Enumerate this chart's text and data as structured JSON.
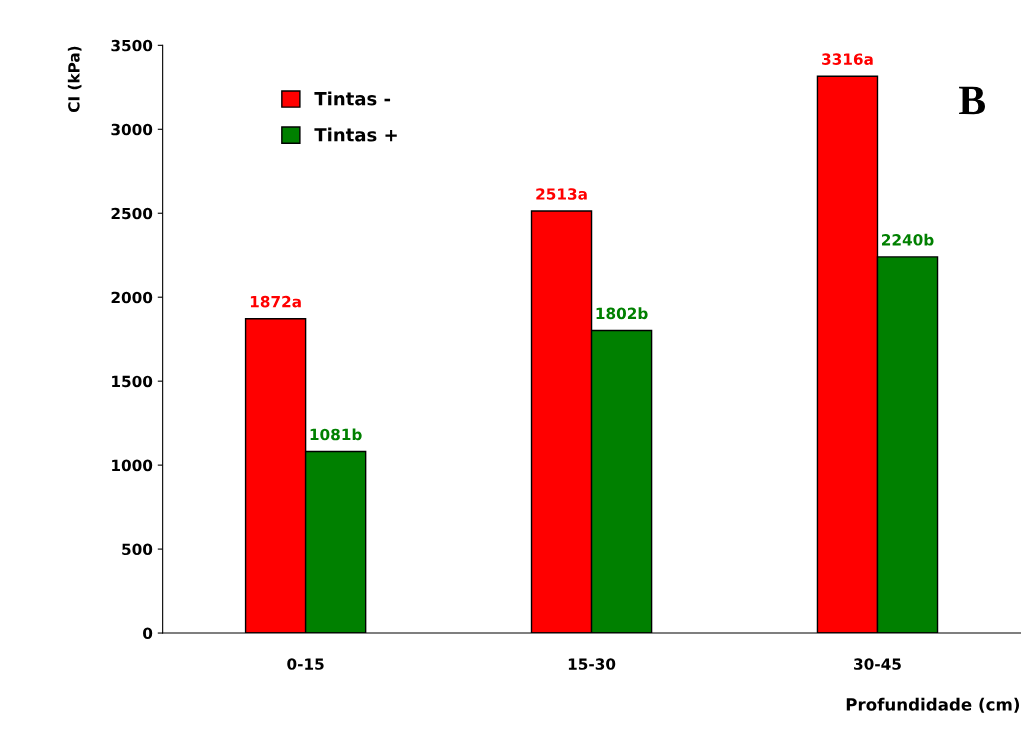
{
  "chart_data": {
    "type": "bar",
    "ylabel": "CI (kPa)",
    "xlabel": "Profundidade (cm)",
    "categories": [
      "0-15",
      "15-30",
      "30-45"
    ],
    "series": [
      {
        "name": "Tintas -",
        "color": "#ff0000",
        "values": [
          1872,
          2513,
          3316
        ],
        "value_labels": [
          "1872a",
          "2513a",
          "3316a"
        ]
      },
      {
        "name": "Tintas +",
        "color": "#008000",
        "values": [
          1081,
          1802,
          2240
        ],
        "value_labels": [
          "1081b",
          "1802b",
          "2240b"
        ]
      }
    ],
    "ylim": [
      0,
      3500
    ],
    "yticks": [
      0,
      500,
      1000,
      1500,
      2000,
      2500,
      3000,
      3500
    ],
    "grid": false,
    "legend": "top left",
    "annotations": [
      "B"
    ]
  }
}
